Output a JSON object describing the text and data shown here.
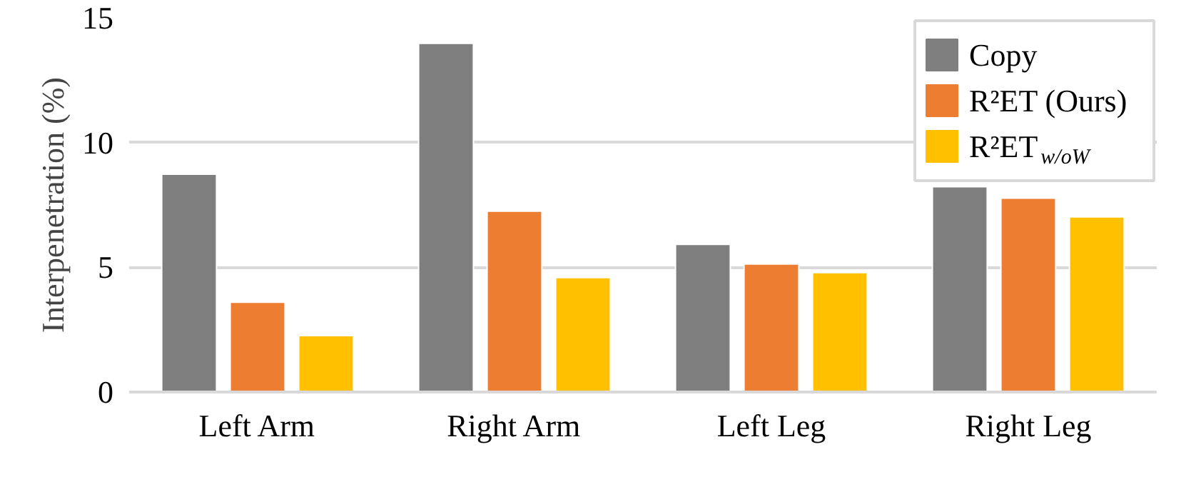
{
  "chart_data": {
    "type": "bar",
    "ylabel": "Interpenetration (%)",
    "categories": [
      "Left Arm",
      "Right Arm",
      "Left Leg",
      "Right Leg"
    ],
    "series": [
      {
        "name": "Copy",
        "color": "#7f7f7f",
        "values": [
          8.73,
          13.98,
          5.92,
          8.23
        ]
      },
      {
        "name": "R²ET (Ours)",
        "color": "#ed7d31",
        "values": [
          3.6,
          7.25,
          5.13,
          7.77
        ]
      },
      {
        "name": "R²ET$_{w/oW}$",
        "color": "#ffc000",
        "values": [
          2.26,
          4.59,
          4.79,
          7.02
        ]
      }
    ],
    "ylim": [
      0,
      15
    ],
    "yticks": [
      0,
      5,
      10,
      15
    ],
    "grid": "y",
    "legend": "top right"
  }
}
